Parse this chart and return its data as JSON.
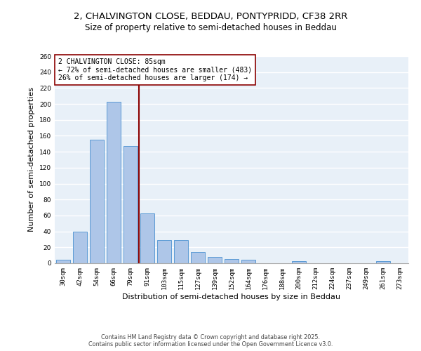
{
  "title_line1": "2, CHALVINGTON CLOSE, BEDDAU, PONTYPRIDD, CF38 2RR",
  "title_line2": "Size of property relative to semi-detached houses in Beddau",
  "xlabel": "Distribution of semi-detached houses by size in Beddau",
  "ylabel": "Number of semi-detached properties",
  "categories": [
    "30sqm",
    "42sqm",
    "54sqm",
    "66sqm",
    "79sqm",
    "91sqm",
    "103sqm",
    "115sqm",
    "127sqm",
    "139sqm",
    "152sqm",
    "164sqm",
    "176sqm",
    "188sqm",
    "200sqm",
    "212sqm",
    "224sqm",
    "237sqm",
    "249sqm",
    "261sqm",
    "273sqm"
  ],
  "values": [
    4,
    40,
    155,
    203,
    147,
    63,
    29,
    29,
    14,
    8,
    5,
    4,
    0,
    0,
    3,
    0,
    0,
    0,
    0,
    3,
    0
  ],
  "bar_color": "#aec6e8",
  "bar_edge_color": "#5b9bd5",
  "vline_x": 4.5,
  "vline_color": "#8b0000",
  "annotation_text": "2 CHALVINGTON CLOSE: 85sqm\n← 72% of semi-detached houses are smaller (483)\n26% of semi-detached houses are larger (174) →",
  "annotation_box_color": "#ffffff",
  "annotation_box_edge": "#8b0000",
  "ylim": [
    0,
    260
  ],
  "yticks": [
    0,
    20,
    40,
    60,
    80,
    100,
    120,
    140,
    160,
    180,
    200,
    220,
    240,
    260
  ],
  "background_color": "#e8f0f8",
  "grid_color": "#ffffff",
  "footer_text": "Contains HM Land Registry data © Crown copyright and database right 2025.\nContains public sector information licensed under the Open Government Licence v3.0.",
  "title_fontsize": 9.5,
  "subtitle_fontsize": 8.5,
  "axis_label_fontsize": 8,
  "tick_fontsize": 6.5,
  "annotation_fontsize": 7,
  "footer_fontsize": 5.8
}
